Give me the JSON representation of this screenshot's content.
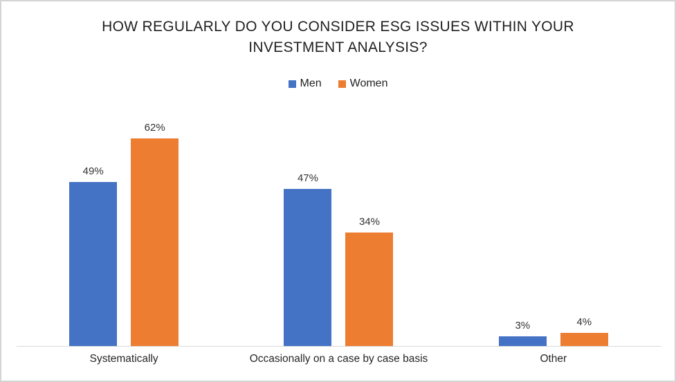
{
  "chart_data": {
    "type": "bar",
    "title": "HOW REGULARLY DO YOU CONSIDER ESG ISSUES WITHIN YOUR INVESTMENT ANALYSIS?",
    "categories": [
      "Systematically",
      "Occasionally on a case by case basis",
      "Other"
    ],
    "series": [
      {
        "name": "Men",
        "color": "#4472C4",
        "values": [
          49,
          47,
          3
        ]
      },
      {
        "name": "Women",
        "color": "#ED7D31",
        "values": [
          62,
          34,
          4
        ]
      }
    ],
    "value_suffix": "%",
    "data_labels": true,
    "legend_position": "top",
    "grid": false,
    "xlabel": "",
    "ylabel": "",
    "ylim": [
      0,
      72
    ],
    "axis_line_color": "#D9D9D9"
  }
}
